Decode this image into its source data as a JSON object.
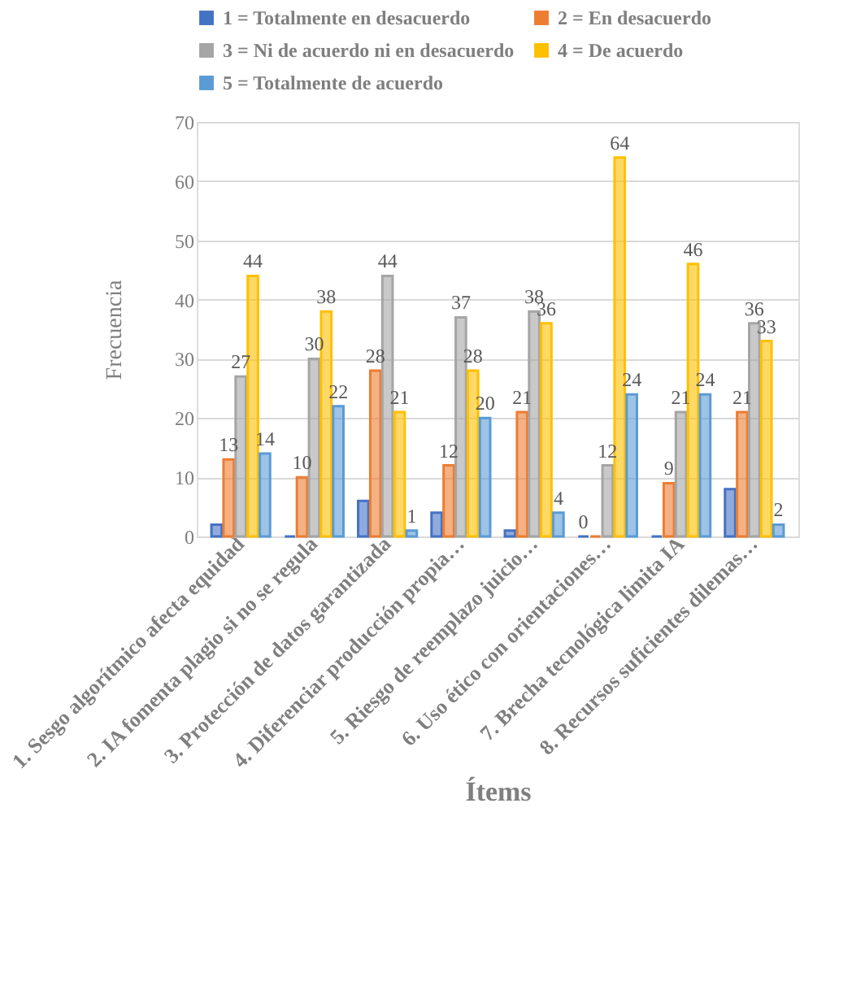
{
  "chart_data": {
    "type": "bar",
    "xlabel": "Ítems",
    "ylabel": "Frecuencia",
    "categories": [
      "1. Sesgo algorítmico afecta equidad",
      "2. IA fomenta plagio si no se regula",
      "3. Protección de datos garantizada",
      "4. Diferenciar producción propia…",
      "5. Riesgo de reemplazo juicio…",
      "6. Uso ético con orientaciones…",
      "7. Brecha tecnológica limita IA",
      "8. Recursos suficientes dilemas…"
    ],
    "series": [
      {
        "name": "1 = Totalmente en desacuerdo",
        "color": "#4472c4",
        "values": [
          2,
          0,
          6,
          4,
          1,
          0,
          0,
          8
        ],
        "value_labels": [
          null,
          null,
          null,
          null,
          null,
          "0",
          null,
          null
        ]
      },
      {
        "name": "2 = En desacuerdo",
        "color": "#ed7d31",
        "values": [
          13,
          10,
          28,
          12,
          21,
          0,
          9,
          21
        ],
        "value_labels": [
          "13",
          "10",
          "28",
          "12",
          "21",
          null,
          "9",
          "21"
        ]
      },
      {
        "name": "3 = Ni de acuerdo ni en desacuerdo",
        "color": "#a5a5a5",
        "values": [
          27,
          30,
          44,
          37,
          38,
          12,
          21,
          36
        ],
        "value_labels": [
          "27",
          "30",
          "44",
          "37",
          "38",
          "12",
          "21",
          "36"
        ]
      },
      {
        "name": "4 = De acuerdo",
        "color": "#ffc000",
        "values": [
          44,
          38,
          21,
          28,
          36,
          64,
          46,
          33
        ],
        "value_labels": [
          "44",
          "38",
          "21",
          "28",
          "36",
          "64",
          "46",
          "33"
        ]
      },
      {
        "name": "5 = Totalmente de acuerdo",
        "color": "#5b9bd5",
        "values": [
          14,
          22,
          1,
          20,
          4,
          24,
          24,
          2
        ],
        "value_labels": [
          "14",
          "22",
          "1",
          "20",
          "4",
          "24",
          "24",
          "2"
        ]
      }
    ],
    "ylim": [
      0,
      70
    ],
    "yticks": [
      0,
      10,
      20,
      30,
      40,
      50,
      60,
      70
    ],
    "grid": "y",
    "legend": "top"
  }
}
